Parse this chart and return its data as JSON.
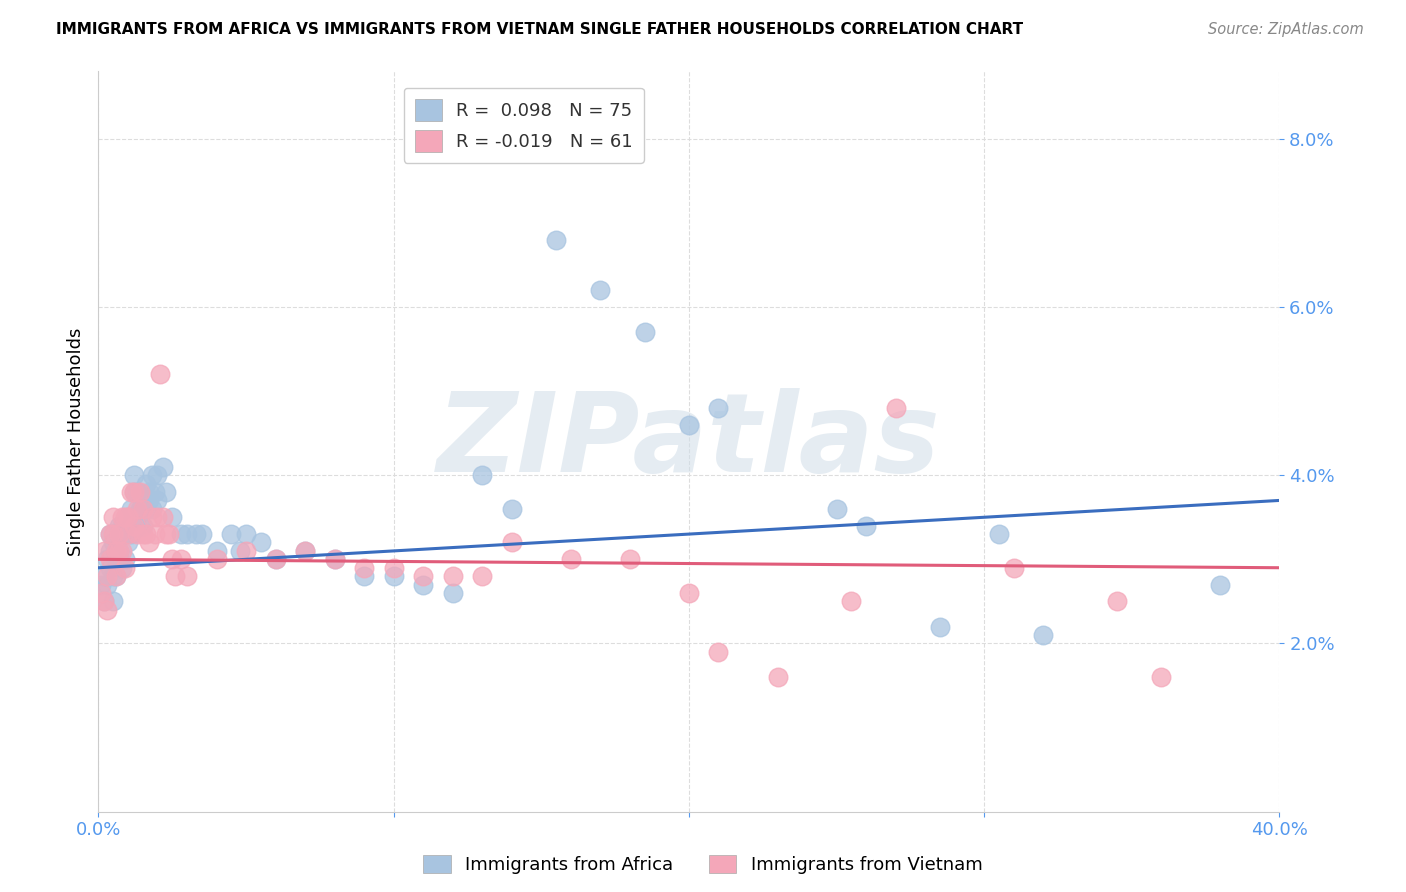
{
  "title": "IMMIGRANTS FROM AFRICA VS IMMIGRANTS FROM VIETNAM SINGLE FATHER HOUSEHOLDS CORRELATION CHART",
  "source": "Source: ZipAtlas.com",
  "ylabel": "Single Father Households",
  "xlim": [
    0.0,
    0.4
  ],
  "ylim": [
    0.0,
    0.088
  ],
  "yticks": [
    0.02,
    0.04,
    0.06,
    0.08
  ],
  "xticks": [
    0.0,
    0.1,
    0.2,
    0.3,
    0.4
  ],
  "xtick_labels": [
    "0.0%",
    "",
    "",
    "",
    "40.0%"
  ],
  "ytick_labels": [
    "2.0%",
    "4.0%",
    "6.0%",
    "8.0%"
  ],
  "africa_R": 0.098,
  "africa_N": 75,
  "vietnam_R": -0.019,
  "vietnam_N": 61,
  "africa_color": "#a8c4e0",
  "vietnam_color": "#f4a7b9",
  "africa_line_color": "#3a6dbf",
  "vietnam_line_color": "#e05c7a",
  "axis_color": "#5599ee",
  "watermark_text": "ZIPatlas",
  "africa_scatter": [
    [
      0.001,
      0.027
    ],
    [
      0.002,
      0.025
    ],
    [
      0.002,
      0.028
    ],
    [
      0.003,
      0.03
    ],
    [
      0.003,
      0.027
    ],
    [
      0.004,
      0.031
    ],
    [
      0.004,
      0.029
    ],
    [
      0.004,
      0.033
    ],
    [
      0.005,
      0.028
    ],
    [
      0.005,
      0.032
    ],
    [
      0.005,
      0.025
    ],
    [
      0.006,
      0.028
    ],
    [
      0.006,
      0.03
    ],
    [
      0.006,
      0.031
    ],
    [
      0.007,
      0.03
    ],
    [
      0.007,
      0.034
    ],
    [
      0.007,
      0.031
    ],
    [
      0.008,
      0.029
    ],
    [
      0.008,
      0.033
    ],
    [
      0.008,
      0.034
    ],
    [
      0.009,
      0.03
    ],
    [
      0.009,
      0.033
    ],
    [
      0.01,
      0.032
    ],
    [
      0.01,
      0.035
    ],
    [
      0.011,
      0.033
    ],
    [
      0.011,
      0.036
    ],
    [
      0.012,
      0.038
    ],
    [
      0.012,
      0.04
    ],
    [
      0.013,
      0.035
    ],
    [
      0.013,
      0.038
    ],
    [
      0.014,
      0.034
    ],
    [
      0.014,
      0.036
    ],
    [
      0.015,
      0.034
    ],
    [
      0.015,
      0.036
    ],
    [
      0.016,
      0.039
    ],
    [
      0.016,
      0.036
    ],
    [
      0.017,
      0.038
    ],
    [
      0.017,
      0.037
    ],
    [
      0.018,
      0.036
    ],
    [
      0.018,
      0.04
    ],
    [
      0.019,
      0.038
    ],
    [
      0.02,
      0.04
    ],
    [
      0.02,
      0.037
    ],
    [
      0.022,
      0.041
    ],
    [
      0.023,
      0.038
    ],
    [
      0.025,
      0.035
    ],
    [
      0.028,
      0.033
    ],
    [
      0.03,
      0.033
    ],
    [
      0.033,
      0.033
    ],
    [
      0.035,
      0.033
    ],
    [
      0.04,
      0.031
    ],
    [
      0.045,
      0.033
    ],
    [
      0.048,
      0.031
    ],
    [
      0.05,
      0.033
    ],
    [
      0.055,
      0.032
    ],
    [
      0.06,
      0.03
    ],
    [
      0.07,
      0.031
    ],
    [
      0.08,
      0.03
    ],
    [
      0.09,
      0.028
    ],
    [
      0.1,
      0.028
    ],
    [
      0.11,
      0.027
    ],
    [
      0.12,
      0.026
    ],
    [
      0.13,
      0.04
    ],
    [
      0.14,
      0.036
    ],
    [
      0.155,
      0.068
    ],
    [
      0.17,
      0.062
    ],
    [
      0.185,
      0.057
    ],
    [
      0.2,
      0.046
    ],
    [
      0.21,
      0.048
    ],
    [
      0.25,
      0.036
    ],
    [
      0.26,
      0.034
    ],
    [
      0.285,
      0.022
    ],
    [
      0.305,
      0.033
    ],
    [
      0.32,
      0.021
    ],
    [
      0.38,
      0.027
    ]
  ],
  "vietnam_scatter": [
    [
      0.001,
      0.026
    ],
    [
      0.002,
      0.025
    ],
    [
      0.002,
      0.031
    ],
    [
      0.003,
      0.028
    ],
    [
      0.003,
      0.024
    ],
    [
      0.004,
      0.033
    ],
    [
      0.004,
      0.03
    ],
    [
      0.005,
      0.035
    ],
    [
      0.005,
      0.033
    ],
    [
      0.006,
      0.031
    ],
    [
      0.006,
      0.028
    ],
    [
      0.007,
      0.033
    ],
    [
      0.007,
      0.031
    ],
    [
      0.008,
      0.035
    ],
    [
      0.008,
      0.031
    ],
    [
      0.009,
      0.035
    ],
    [
      0.009,
      0.029
    ],
    [
      0.01,
      0.035
    ],
    [
      0.01,
      0.033
    ],
    [
      0.011,
      0.038
    ],
    [
      0.012,
      0.034
    ],
    [
      0.012,
      0.038
    ],
    [
      0.013,
      0.036
    ],
    [
      0.013,
      0.033
    ],
    [
      0.014,
      0.038
    ],
    [
      0.015,
      0.036
    ],
    [
      0.015,
      0.033
    ],
    [
      0.016,
      0.033
    ],
    [
      0.017,
      0.032
    ],
    [
      0.018,
      0.035
    ],
    [
      0.019,
      0.033
    ],
    [
      0.02,
      0.035
    ],
    [
      0.021,
      0.052
    ],
    [
      0.022,
      0.035
    ],
    [
      0.023,
      0.033
    ],
    [
      0.024,
      0.033
    ],
    [
      0.025,
      0.03
    ],
    [
      0.026,
      0.028
    ],
    [
      0.028,
      0.03
    ],
    [
      0.03,
      0.028
    ],
    [
      0.04,
      0.03
    ],
    [
      0.05,
      0.031
    ],
    [
      0.06,
      0.03
    ],
    [
      0.07,
      0.031
    ],
    [
      0.08,
      0.03
    ],
    [
      0.09,
      0.029
    ],
    [
      0.1,
      0.029
    ],
    [
      0.11,
      0.028
    ],
    [
      0.12,
      0.028
    ],
    [
      0.13,
      0.028
    ],
    [
      0.14,
      0.032
    ],
    [
      0.16,
      0.03
    ],
    [
      0.18,
      0.03
    ],
    [
      0.2,
      0.026
    ],
    [
      0.21,
      0.019
    ],
    [
      0.23,
      0.016
    ],
    [
      0.255,
      0.025
    ],
    [
      0.27,
      0.048
    ],
    [
      0.31,
      0.029
    ],
    [
      0.345,
      0.025
    ],
    [
      0.36,
      0.016
    ]
  ]
}
